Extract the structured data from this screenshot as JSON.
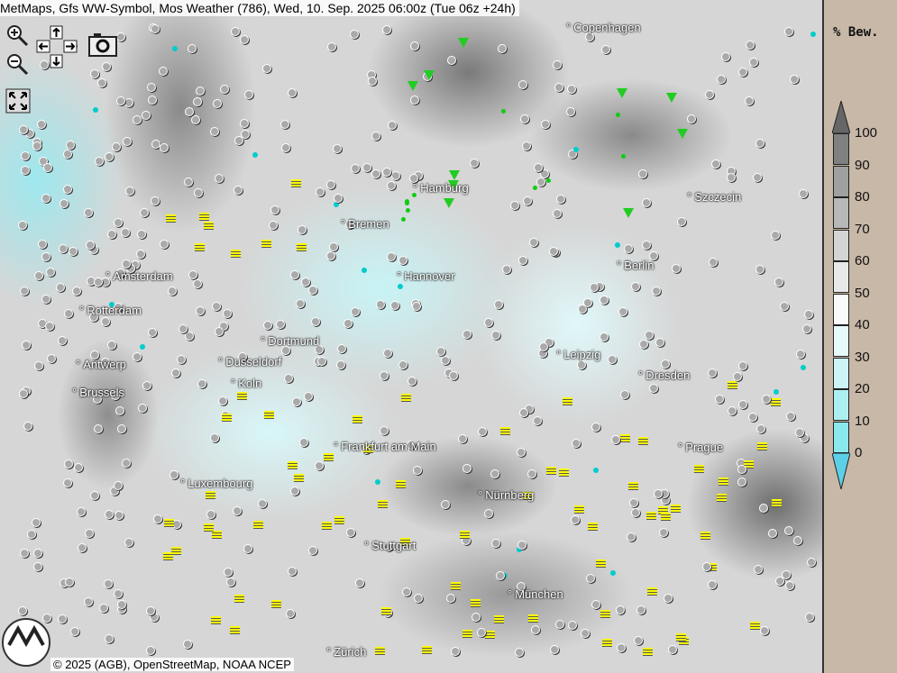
{
  "title": "MetMaps, Gfs WW-Symbol, Mos Weather (786), Wed, 10. Sep. 2025 06:00z (Tue 06z +24h)",
  "controls": {
    "zoom_in": "zoom-in-icon",
    "zoom_out": "zoom-out-icon",
    "pan": "pan-arrows-icon",
    "screenshot": "camera-icon",
    "fullscreen": "fullscreen-icon"
  },
  "cities": [
    {
      "name": "Copenhagen"
    },
    {
      "name": "Hamburg"
    },
    {
      "name": "Szczecin"
    },
    {
      "name": "Bremen"
    },
    {
      "name": "Amsterdam"
    },
    {
      "name": "Hannover"
    },
    {
      "name": "Berlin"
    },
    {
      "name": "Rotterdam"
    },
    {
      "name": "Dortmund"
    },
    {
      "name": "Leipzig"
    },
    {
      "name": "Antwerp"
    },
    {
      "name": "Dusseldorf"
    },
    {
      "name": "Dresden"
    },
    {
      "name": "Brussels"
    },
    {
      "name": "Koln"
    },
    {
      "name": "Frankfurt am Main"
    },
    {
      "name": "Prague"
    },
    {
      "name": "Luxembourg"
    },
    {
      "name": "Nürnberg"
    },
    {
      "name": "Stuttgart"
    },
    {
      "name": "München"
    },
    {
      "name": "Zürich"
    }
  ],
  "legend": {
    "title": "% Bew.",
    "ticks": [
      "100",
      "90",
      "80",
      "70",
      "60",
      "50",
      "40",
      "30",
      "20",
      "10",
      "0"
    ],
    "colors": [
      "#666666",
      "#808080",
      "#a0a0a0",
      "#b8b8b8",
      "#d4d4d4",
      "#e8e8e8",
      "#fafafa",
      "#e6fafa",
      "#ccf4f6",
      "#adf0f2",
      "#88e8ec",
      "#5cd0e8"
    ]
  },
  "logo": "METMAPS",
  "footer": "© 2025 (AGB), OpenStreetMap, NOAA NCEP"
}
